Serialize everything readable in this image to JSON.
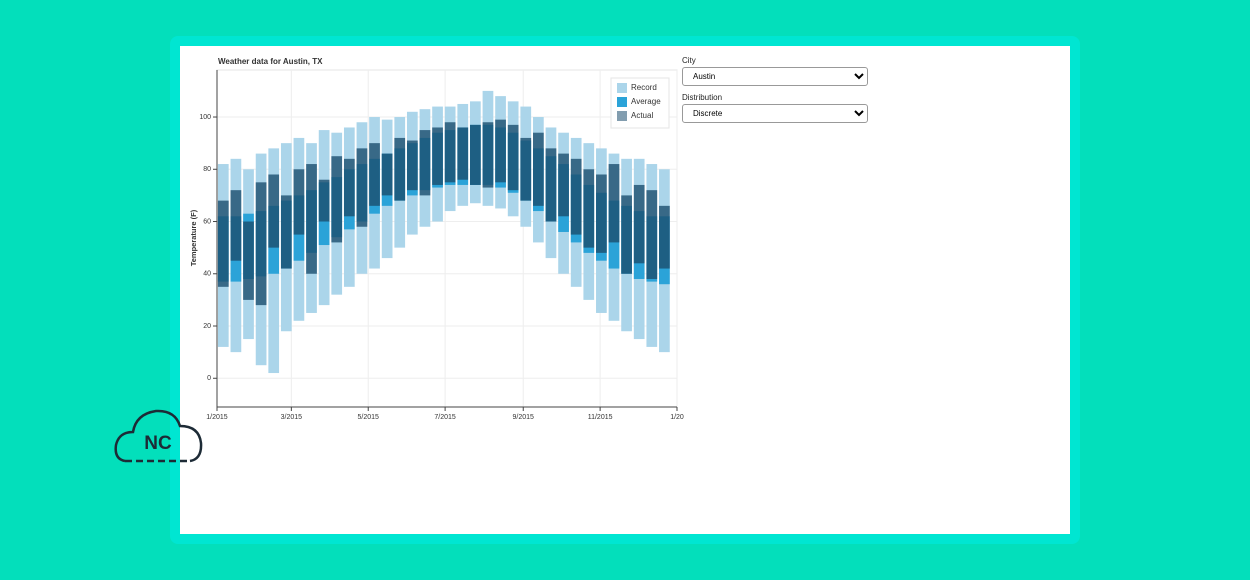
{
  "chart_data": {
    "type": "range_bar",
    "title": "Weather data for Austin, TX",
    "ylabel": "Temperature (F)",
    "x": [
      5,
      15,
      25,
      35,
      45,
      55,
      65,
      75,
      85,
      95,
      105,
      115,
      125,
      135,
      145,
      155,
      165,
      175,
      185,
      195,
      205,
      215,
      225,
      235,
      245,
      255,
      265,
      275,
      285,
      295,
      305,
      315,
      325,
      335,
      345,
      355
    ],
    "xlim": [
      0,
      365
    ],
    "xticks": [
      {
        "value": 0,
        "label": "1/2015"
      },
      {
        "value": 59,
        "label": "3/2015"
      },
      {
        "value": 120,
        "label": "5/2015"
      },
      {
        "value": 181,
        "label": "7/2015"
      },
      {
        "value": 243,
        "label": "9/2015"
      },
      {
        "value": 304,
        "label": "11/2015"
      },
      {
        "value": 365,
        "label": "1/20"
      }
    ],
    "ylim": [
      -11,
      118
    ],
    "yticks": [
      0,
      20,
      40,
      60,
      80,
      100
    ],
    "grid": true,
    "legend": "top-right",
    "series": [
      {
        "name": "Record",
        "color": "#abd5ea",
        "low": [
          12,
          10,
          15,
          5,
          2,
          18,
          22,
          25,
          28,
          32,
          35,
          40,
          42,
          46,
          50,
          55,
          58,
          60,
          64,
          66,
          67,
          66,
          65,
          62,
          58,
          52,
          46,
          40,
          35,
          30,
          25,
          22,
          18,
          15,
          12,
          10
        ],
        "high": [
          82,
          84,
          80,
          86,
          88,
          90,
          92,
          90,
          95,
          94,
          96,
          98,
          100,
          99,
          100,
          102,
          103,
          104,
          104,
          105,
          106,
          110,
          108,
          106,
          104,
          100,
          96,
          94,
          92,
          90,
          88,
          86,
          84,
          84,
          82,
          80
        ]
      },
      {
        "name": "Average",
        "color": "#2ba3d8",
        "low": [
          37,
          37,
          38,
          39,
          40,
          42,
          45,
          48,
          51,
          54,
          57,
          60,
          63,
          66,
          68,
          70,
          72,
          73,
          74,
          74,
          74,
          74,
          73,
          71,
          68,
          64,
          60,
          56,
          52,
          48,
          45,
          42,
          40,
          38,
          37,
          36
        ],
        "high": [
          62,
          62,
          63,
          64,
          66,
          68,
          70,
          72,
          75,
          77,
          80,
          82,
          84,
          86,
          88,
          90,
          92,
          94,
          95,
          96,
          97,
          97,
          96,
          94,
          91,
          88,
          85,
          82,
          78,
          74,
          71,
          68,
          66,
          64,
          62,
          62
        ]
      },
      {
        "name": "Actual",
        "color": "#1c4d6e",
        "low": [
          35,
          45,
          30,
          28,
          50,
          42,
          55,
          40,
          60,
          52,
          62,
          58,
          66,
          70,
          68,
          72,
          70,
          74,
          75,
          76,
          74,
          73,
          75,
          72,
          68,
          66,
          60,
          62,
          55,
          50,
          48,
          52,
          40,
          44,
          38,
          42
        ],
        "high": [
          68,
          72,
          60,
          75,
          78,
          70,
          80,
          82,
          76,
          85,
          84,
          88,
          90,
          86,
          92,
          91,
          95,
          96,
          98,
          96,
          97,
          98,
          99,
          97,
          92,
          94,
          88,
          86,
          84,
          80,
          78,
          82,
          70,
          74,
          72,
          66
        ]
      }
    ]
  },
  "controls": [
    {
      "label": "City",
      "value": "Austin"
    },
    {
      "label": "Distribution",
      "value": "Discrete"
    }
  ],
  "logo": "NC"
}
